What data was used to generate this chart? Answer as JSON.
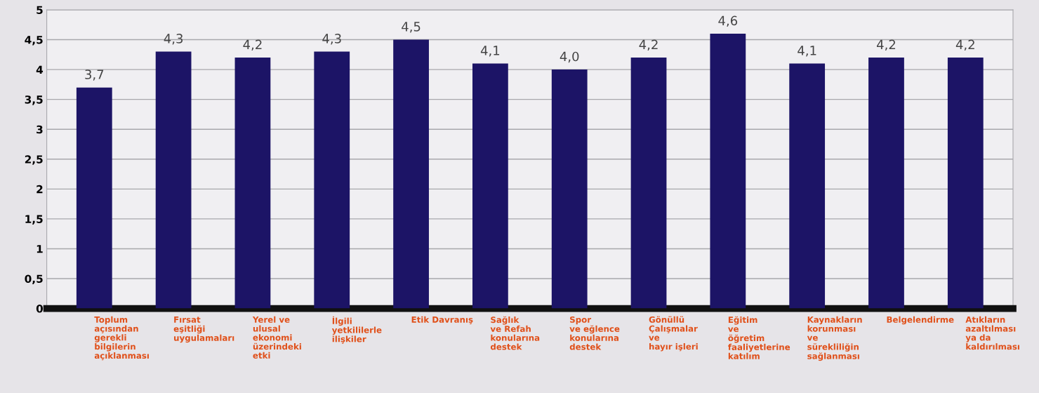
{
  "chart_data": {
    "type": "bar",
    "categories": [
      "Toplum\naçısından\ngerekli\nbilgilerin\naçıklanması",
      "Fırsat\neşitliği\nuygulamaları",
      "Yerel ve\nulusal\nekonomi\nüzerindeki\netki",
      "İlgili\nyetkililerle\nilişkiler",
      "Etik Davranış",
      "Sağlık\nve Refah\nkonularına\ndestek",
      "Spor\nve eğlence\nkonularına\ndestek",
      "Gönüllü\nÇalışmalar\nve\nhayır işleri",
      "Eğitim\nve\nöğretim\nfaaliyetlerine\nkatılım",
      "Kaynakların\nkorunması\nve\nsürekliliğin\nsağlanması",
      "Belgelendirme",
      "Atıkların\nazaltılması\nya da\nkaldırılması"
    ],
    "values": [
      3.7,
      4.3,
      4.2,
      4.3,
      4.5,
      4.1,
      4.0,
      4.2,
      4.6,
      4.1,
      4.2,
      4.2
    ],
    "value_labels": [
      "3,7",
      "4,3",
      "4,2",
      "4,3",
      "4,5",
      "4,1",
      "4,0",
      "4,2",
      "4,6",
      "4,1",
      "4,2",
      "4,2"
    ],
    "color": "#1c1466",
    "ylim": [
      0,
      5
    ],
    "yticks": [
      0,
      {
        "value": 0.5,
        "label": "0,5"
      },
      1,
      {
        "value": 1.5,
        "label": "1,5"
      },
      2,
      {
        "value": 2.5,
        "label": "2,5"
      },
      3,
      {
        "value": 3.5,
        "label": "3,5"
      },
      4,
      {
        "value": 4.5,
        "label": "4,5"
      },
      5
    ],
    "grid": "y"
  }
}
